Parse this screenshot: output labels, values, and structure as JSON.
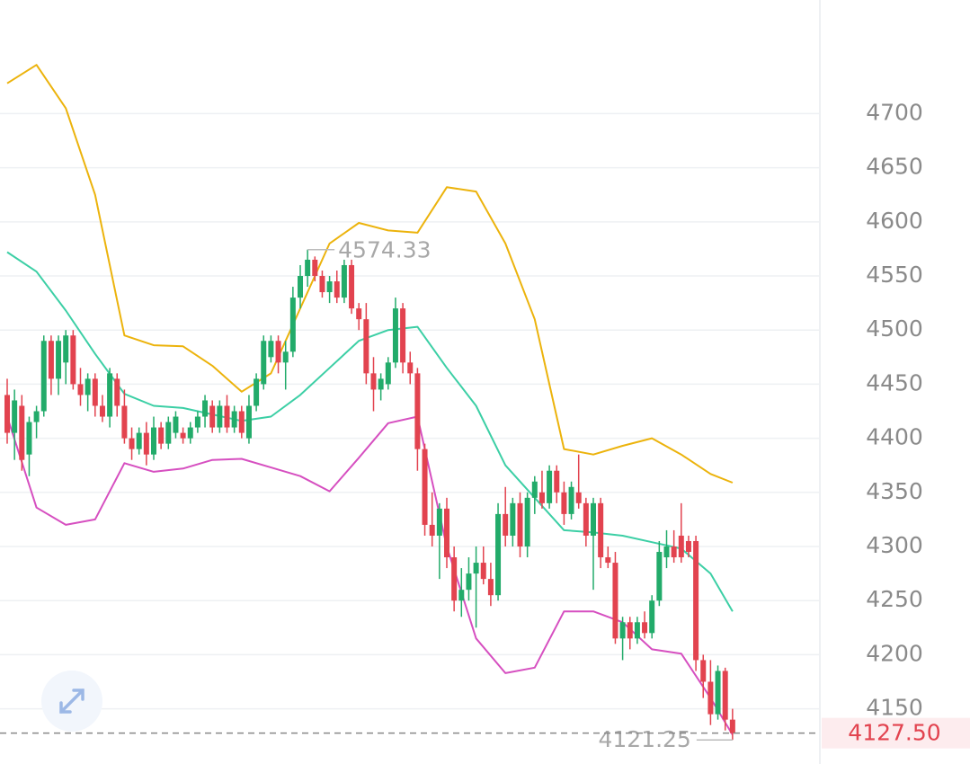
{
  "chart_data": {
    "type": "candlestick",
    "ylim": [
      4099,
      4805
    ],
    "yticks": [
      4150,
      4200,
      4250,
      4300,
      4350,
      4400,
      4450,
      4500,
      4550,
      4600,
      4650,
      4700
    ],
    "grid": true,
    "up_color": "#22ab6a",
    "down_color": "#e2434f",
    "ohlc": [
      [
        4440,
        4455,
        4395,
        4405
      ],
      [
        4405,
        4445,
        4380,
        4435
      ],
      [
        4430,
        4440,
        4370,
        4380
      ],
      [
        4385,
        4420,
        4365,
        4415
      ],
      [
        4415,
        4430,
        4400,
        4425
      ],
      [
        4425,
        4495,
        4420,
        4490
      ],
      [
        4490,
        4495,
        4440,
        4455
      ],
      [
        4455,
        4495,
        4440,
        4490
      ],
      [
        4470,
        4500,
        4450,
        4495
      ],
      [
        4495,
        4500,
        4445,
        4450
      ],
      [
        4450,
        4465,
        4430,
        4440
      ],
      [
        4440,
        4460,
        4425,
        4455
      ],
      [
        4455,
        4460,
        4420,
        4430
      ],
      [
        4430,
        4440,
        4415,
        4420
      ],
      [
        4420,
        4465,
        4410,
        4460
      ],
      [
        4455,
        4460,
        4420,
        4430
      ],
      [
        4430,
        4445,
        4395,
        4400
      ],
      [
        4400,
        4410,
        4380,
        4390
      ],
      [
        4390,
        4410,
        4385,
        4405
      ],
      [
        4405,
        4415,
        4375,
        4385
      ],
      [
        4385,
        4420,
        4380,
        4410
      ],
      [
        4410,
        4415,
        4390,
        4395
      ],
      [
        4395,
        4420,
        4390,
        4415
      ],
      [
        4405,
        4425,
        4400,
        4420
      ],
      [
        4405,
        4410,
        4395,
        4400
      ],
      [
        4400,
        4415,
        4395,
        4410
      ],
      [
        4410,
        4425,
        4405,
        4420
      ],
      [
        4420,
        4440,
        4410,
        4435
      ],
      [
        4430,
        4435,
        4405,
        4410
      ],
      [
        4410,
        4435,
        4405,
        4430
      ],
      [
        4430,
        4440,
        4405,
        4410
      ],
      [
        4410,
        4430,
        4405,
        4425
      ],
      [
        4425,
        4430,
        4400,
        4405
      ],
      [
        4400,
        4440,
        4395,
        4430
      ],
      [
        4430,
        4460,
        4425,
        4455
      ],
      [
        4450,
        4495,
        4445,
        4490
      ],
      [
        4475,
        4495,
        4470,
        4490
      ],
      [
        4490,
        4495,
        4460,
        4470
      ],
      [
        4470,
        4490,
        4445,
        4480
      ],
      [
        4480,
        4540,
        4475,
        4530
      ],
      [
        4530,
        4560,
        4520,
        4550
      ],
      [
        4550,
        4574.33,
        4540,
        4565
      ],
      [
        4565,
        4568,
        4545,
        4550
      ],
      [
        4550,
        4555,
        4530,
        4535
      ],
      [
        4535,
        4550,
        4525,
        4545
      ],
      [
        4545,
        4555,
        4525,
        4530
      ],
      [
        4530,
        4565,
        4525,
        4560
      ],
      [
        4560,
        4565,
        4515,
        4520
      ],
      [
        4520,
        4525,
        4500,
        4510
      ],
      [
        4510,
        4525,
        4450,
        4460
      ],
      [
        4460,
        4475,
        4425,
        4445
      ],
      [
        4445,
        4460,
        4435,
        4455
      ],
      [
        4450,
        4475,
        4445,
        4470
      ],
      [
        4470,
        4530,
        4465,
        4520
      ],
      [
        4520,
        4525,
        4460,
        4470
      ],
      [
        4470,
        4480,
        4450,
        4460
      ],
      [
        4460,
        4465,
        4370,
        4390
      ],
      [
        4390,
        4395,
        4310,
        4320
      ],
      [
        4320,
        4350,
        4300,
        4310
      ],
      [
        4310,
        4340,
        4270,
        4335
      ],
      [
        4335,
        4345,
        4280,
        4290
      ],
      [
        4290,
        4300,
        4240,
        4250
      ],
      [
        4250,
        4280,
        4235,
        4260
      ],
      [
        4260,
        4290,
        4250,
        4275
      ],
      [
        4275,
        4300,
        4225,
        4285
      ],
      [
        4285,
        4300,
        4265,
        4270
      ],
      [
        4270,
        4285,
        4245,
        4255
      ],
      [
        4255,
        4340,
        4250,
        4330
      ],
      [
        4330,
        4355,
        4300,
        4310
      ],
      [
        4310,
        4345,
        4300,
        4340
      ],
      [
        4340,
        4350,
        4290,
        4300
      ],
      [
        4300,
        4350,
        4290,
        4345
      ],
      [
        4345,
        4365,
        4330,
        4360
      ],
      [
        4350,
        4370,
        4335,
        4340
      ],
      [
        4340,
        4375,
        4335,
        4370
      ],
      [
        4370,
        4375,
        4340,
        4350
      ],
      [
        4350,
        4360,
        4320,
        4330
      ],
      [
        4330,
        4360,
        4325,
        4355
      ],
      [
        4350,
        4385,
        4335,
        4340
      ],
      [
        4340,
        4345,
        4300,
        4310
      ],
      [
        4310,
        4345,
        4260,
        4340
      ],
      [
        4340,
        4345,
        4280,
        4290
      ],
      [
        4290,
        4300,
        4280,
        4285
      ],
      [
        4285,
        4295,
        4210,
        4215
      ],
      [
        4215,
        4235,
        4195,
        4230
      ],
      [
        4230,
        4235,
        4205,
        4215
      ],
      [
        4215,
        4235,
        4210,
        4230
      ],
      [
        4230,
        4240,
        4215,
        4220
      ],
      [
        4220,
        4255,
        4215,
        4250
      ],
      [
        4250,
        4305,
        4245,
        4295
      ],
      [
        4290,
        4315,
        4280,
        4300
      ],
      [
        4300,
        4315,
        4285,
        4290
      ],
      [
        4310,
        4340,
        4285,
        4290
      ],
      [
        4305,
        4310,
        4290,
        4295
      ],
      [
        4305,
        4310,
        4185,
        4195
      ],
      [
        4195,
        4200,
        4160,
        4175
      ],
      [
        4175,
        4195,
        4135,
        4145
      ],
      [
        4145,
        4190,
        4140,
        4185
      ],
      [
        4185,
        4188,
        4130,
        4140
      ],
      [
        4140,
        4150,
        4121.25,
        4127.5
      ]
    ],
    "band_x": [
      0,
      4,
      8,
      12,
      16,
      20,
      24,
      28,
      32,
      36,
      40,
      44,
      48,
      52,
      56,
      60,
      64,
      68,
      72,
      76,
      80,
      84,
      88,
      92,
      96,
      99
    ],
    "series": [
      {
        "color": "#ecb30c",
        "values": [
          4728,
          4745,
          4705,
          4625,
          4495,
          4486,
          4485,
          4467,
          4443,
          4460,
          4520,
          4580,
          4599,
          4592,
          4590,
          4632,
          4628,
          4580,
          4510,
          4390,
          4385,
          4393,
          4400,
          4385,
          4367,
          4359
        ]
      },
      {
        "color": "#3ccfa5",
        "values": [
          4572,
          4554,
          4518,
          4478,
          4441,
          4430,
          4428,
          4422,
          4416,
          4420,
          4440,
          4465,
          4490,
          4500,
          4503,
          4465,
          4430,
          4375,
          4345,
          4315,
          4313,
          4310,
          4304,
          4298,
          4275,
          4240
        ]
      },
      {
        "color": "#d64fc0",
        "values": [
          4420,
          4336,
          4320,
          4325,
          4377,
          4369,
          4372,
          4380,
          4381,
          4373,
          4365,
          4351,
          4382,
          4414,
          4420,
          4300,
          4215,
          4183,
          4188,
          4240,
          4240,
          4230,
          4205,
          4201,
          4160,
          4126
        ]
      }
    ],
    "high_label": 4574.33,
    "low_label": 4121.25,
    "last_price": {
      "value": 4127.5,
      "label": "4127.50"
    }
  }
}
